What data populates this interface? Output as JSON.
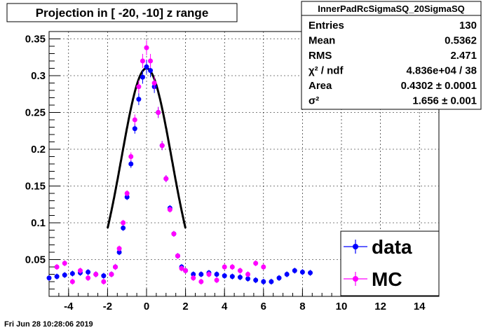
{
  "chart_data": {
    "type": "scatter",
    "title": "Projection in [ -20, -10] z range",
    "xlim": [
      -5,
      15
    ],
    "ylim": [
      0,
      0.36
    ],
    "x_ticks": [
      -4,
      -2,
      0,
      2,
      4,
      6,
      8,
      10,
      12,
      14
    ],
    "y_ticks": [
      0.05,
      0.1,
      0.15,
      0.2,
      0.25,
      0.3,
      0.35
    ],
    "grid": true,
    "legend_placement": "bottom-right",
    "stats_box": {
      "title": "InnerPadRcSigmaSQ_20SigmaSQ",
      "rows": [
        {
          "label": "Entries",
          "value": "130"
        },
        {
          "label": "Mean",
          "value": "0.5362"
        },
        {
          "label": "RMS",
          "value": "2.471"
        },
        {
          "label": "χ² / ndf",
          "value": "4.836e+04 / 38"
        },
        {
          "label": "Area",
          "value": "0.4302  ± 0.0001"
        },
        {
          "label": "σ²",
          "value": "1.656  ± 0.001"
        }
      ]
    },
    "series": [
      {
        "name": "data",
        "color": "#0000ff",
        "x": [
          -5.0,
          -4.6,
          -4.2,
          -3.8,
          -3.4,
          -3.0,
          -2.6,
          -2.2,
          -1.8,
          -1.6,
          -1.4,
          -1.2,
          -1.0,
          -0.8,
          -0.6,
          -0.4,
          -0.2,
          0.0,
          0.2,
          0.4,
          0.6,
          0.8,
          1.0,
          1.2,
          1.4,
          1.6,
          1.8,
          2.0,
          2.4,
          2.8,
          3.2,
          3.6,
          4.0,
          4.4,
          4.8,
          5.2,
          5.6,
          6.0,
          6.4,
          6.8,
          7.2,
          7.6,
          8.0,
          8.4
        ],
        "y": [
          0.025,
          0.027,
          0.029,
          0.031,
          0.032,
          0.033,
          0.03,
          0.028,
          0.03,
          0.04,
          0.06,
          0.093,
          0.135,
          0.18,
          0.228,
          0.268,
          0.298,
          0.312,
          0.307,
          0.285,
          0.25,
          0.205,
          0.16,
          0.12,
          0.085,
          0.055,
          0.04,
          0.035,
          0.03,
          0.03,
          0.032,
          0.03,
          0.028,
          0.027,
          0.026,
          0.024,
          0.022,
          0.02,
          0.02,
          0.025,
          0.03,
          0.035,
          0.033,
          0.032
        ]
      },
      {
        "name": "MC",
        "color": "#ff00ff",
        "x": [
          -4.6,
          -4.2,
          -3.8,
          -3.4,
          -3.0,
          -2.6,
          -2.2,
          -1.8,
          -1.6,
          -1.4,
          -1.2,
          -1.0,
          -0.8,
          -0.6,
          -0.4,
          -0.2,
          0.0,
          0.2,
          0.4,
          0.6,
          0.8,
          1.0,
          1.2,
          1.4,
          1.6,
          1.8,
          2.0,
          2.4,
          2.8,
          3.2,
          3.6,
          4.0,
          4.4,
          4.8,
          5.2,
          5.6,
          6.0
        ],
        "y": [
          0.04,
          0.045,
          0.02,
          0.035,
          0.025,
          0.03,
          0.02,
          0.03,
          0.04,
          0.065,
          0.1,
          0.14,
          0.19,
          0.24,
          0.285,
          0.32,
          0.338,
          0.32,
          0.29,
          0.25,
          0.205,
          0.16,
          0.118,
          0.085,
          0.055,
          0.038,
          0.035,
          0.025,
          0.02,
          0.03,
          0.022,
          0.04,
          0.04,
          0.035,
          0.03,
          0.045,
          0.04
        ]
      }
    ],
    "fit": {
      "type": "gaussian",
      "amplitude": 0.31,
      "mean": 0.0,
      "sigma2": 1.656,
      "x_range": [
        -2.0,
        2.0
      ]
    },
    "timestamp": "Fri Jun 28 10:28:06 2019"
  }
}
